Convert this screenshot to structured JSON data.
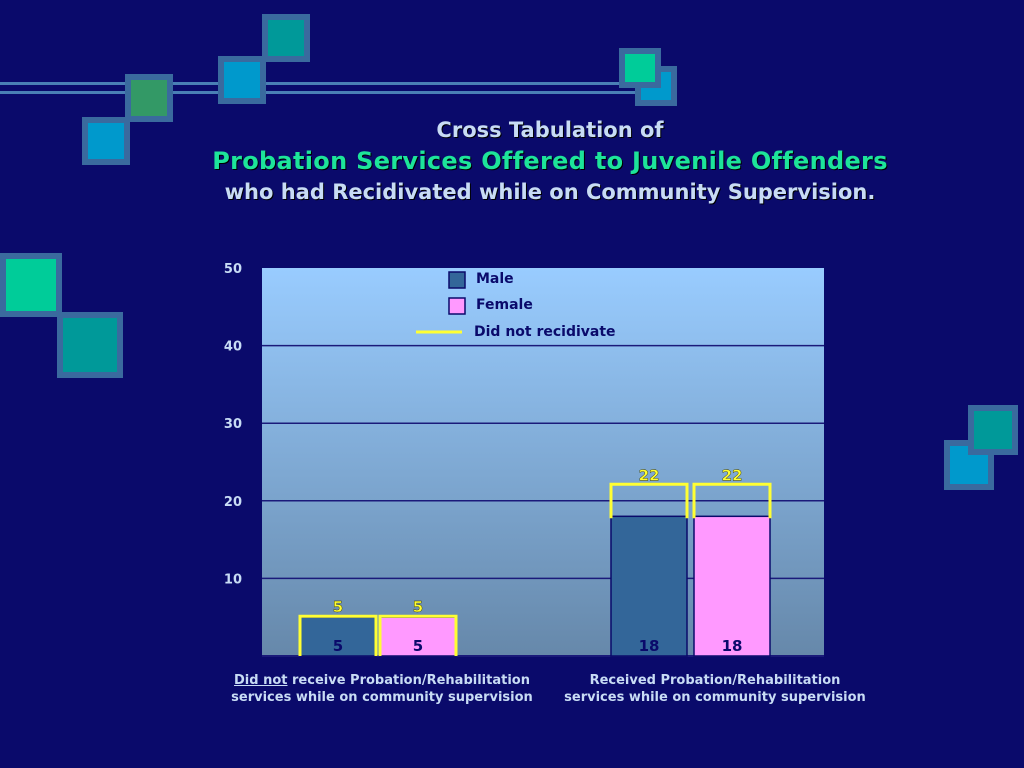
{
  "title": {
    "line1": "Cross Tabulation of",
    "line2": "Probation Services Offered to Juvenile Offenders",
    "line3": "who had Recidivated while on Community Supervision."
  },
  "colors": {
    "background": "#0a0a6b",
    "male": "#336699",
    "female": "#ff99ff",
    "did_not_recidivate": "#ffff33",
    "plot_top": "#99ccff",
    "plot_bottom": "#6688aa"
  },
  "chart_data": {
    "type": "bar",
    "categories": [
      "Did not receive Probation/Rehabilitation services while on community supervision",
      "Received Probation/Rehabilitation services while on community supervision"
    ],
    "category_labels": [
      {
        "emph": "Did not",
        "rest": " receive Probation/Rehabilitation",
        "line2": "services while on community supervision"
      },
      {
        "emph": "",
        "rest": "Received Probation/Rehabilitation",
        "line2": "services while on community supervision"
      }
    ],
    "series": [
      {
        "name": "Male",
        "values": [
          5,
          18
        ],
        "value_labels": [
          "5",
          "18"
        ]
      },
      {
        "name": "Female",
        "values": [
          5,
          18
        ],
        "value_labels": [
          "5",
          "18"
        ]
      }
    ],
    "did_not_recidivate": {
      "name": "Did not recidivate",
      "values": [
        [
          5,
          5
        ],
        [
          22,
          22
        ]
      ],
      "value_labels": [
        [
          "5",
          "5"
        ],
        [
          "22",
          "22"
        ]
      ]
    },
    "ylim": [
      0,
      50
    ],
    "yticks": [
      10,
      20,
      30,
      40,
      50
    ],
    "ytick_labels": [
      "10",
      "20",
      "30",
      "40",
      "50"
    ],
    "grid": true,
    "legend_position": "top-center"
  }
}
